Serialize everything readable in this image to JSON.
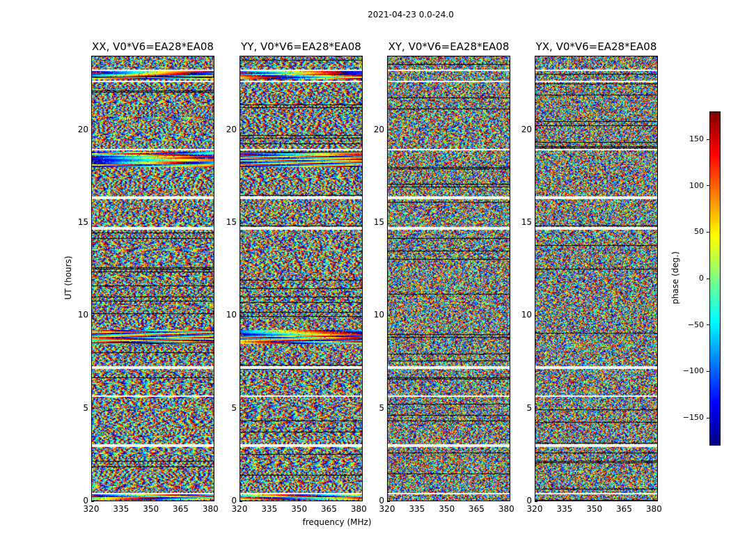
{
  "chart_data": {
    "type": "heatmap",
    "title": "2021-04-23 0.0-24.0",
    "xlabel": "frequency (MHz)",
    "ylabel": "UT (hours)",
    "xlim": [
      320,
      382
    ],
    "ylim": [
      0,
      24
    ],
    "xticks": [
      "320",
      "335",
      "350",
      "365",
      "380"
    ],
    "yticks": [
      "0",
      "5",
      "10",
      "15",
      "20"
    ],
    "panels": [
      {
        "title": "XX, V0*V6=EA28*EA08",
        "polarization": "XX"
      },
      {
        "title": "YY, V0*V6=EA28*EA08",
        "polarization": "YY"
      },
      {
        "title": "XY, V0*V6=EA28*EA08",
        "polarization": "XY"
      },
      {
        "title": "YX, V0*V6=EA28*EA08",
        "polarization": "YX"
      }
    ],
    "colorbar": {
      "label": "phase (deg.)",
      "range": [
        -180,
        180
      ],
      "colormap": "jet",
      "ticks": [
        "150",
        "100",
        "50",
        "0",
        "−50",
        "−100",
        "−150"
      ]
    },
    "blank_time_bands_hours": [
      [
        0.35,
        0.48
      ],
      [
        2.95,
        3.05
      ],
      [
        5.6,
        5.7
      ],
      [
        7.1,
        7.25
      ],
      [
        14.6,
        14.75
      ],
      [
        16.3,
        16.4
      ],
      [
        18.9,
        18.97
      ],
      [
        22.55,
        22.65
      ],
      [
        23.2,
        23.28
      ]
    ],
    "coherent_bands_hours": [
      {
        "range": [
          0.05,
          0.35
        ],
        "panels": [
          "XX",
          "YY"
        ]
      },
      {
        "range": [
          8.5,
          9.25
        ],
        "panels": [
          "XX",
          "YY"
        ]
      },
      {
        "range": [
          18.0,
          18.85
        ],
        "panels": [
          "XX",
          "YY"
        ]
      },
      {
        "range": [
          22.7,
          23.15
        ],
        "panels": [
          "XX",
          "YY"
        ]
      }
    ]
  }
}
